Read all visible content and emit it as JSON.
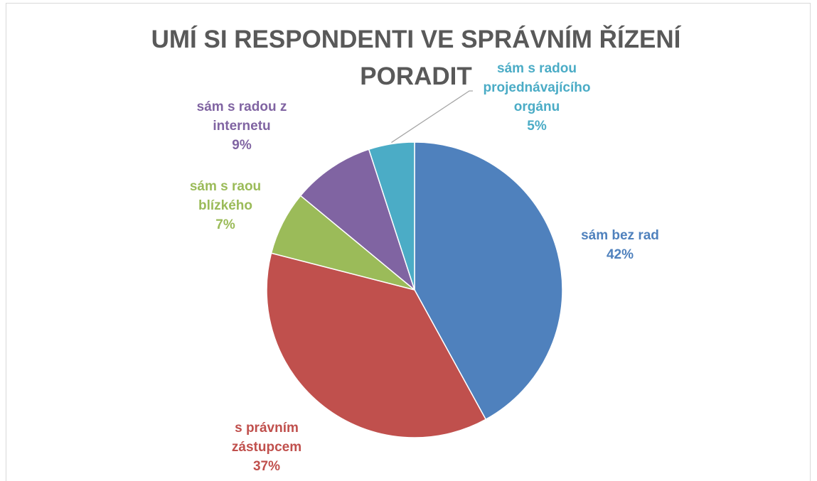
{
  "chart_data": {
    "type": "pie",
    "title": "UMÍ SI RESPONDENTI VE SPRÁVNÍM ŘÍZENÍ PORADIT",
    "categories": [
      "sám bez rad",
      "s právním zástupcem",
      "sám s raou blízkého",
      "sám s radou z internetu",
      "sám s radou projednávajícího orgánu"
    ],
    "values": [
      42,
      37,
      7,
      9,
      5
    ],
    "value_labels": [
      "42%",
      "37%",
      "7%",
      "9%",
      "5%"
    ],
    "colors": [
      "#4f81bd",
      "#c0504d",
      "#9bbb59",
      "#8064a2",
      "#4bacc6"
    ]
  }
}
